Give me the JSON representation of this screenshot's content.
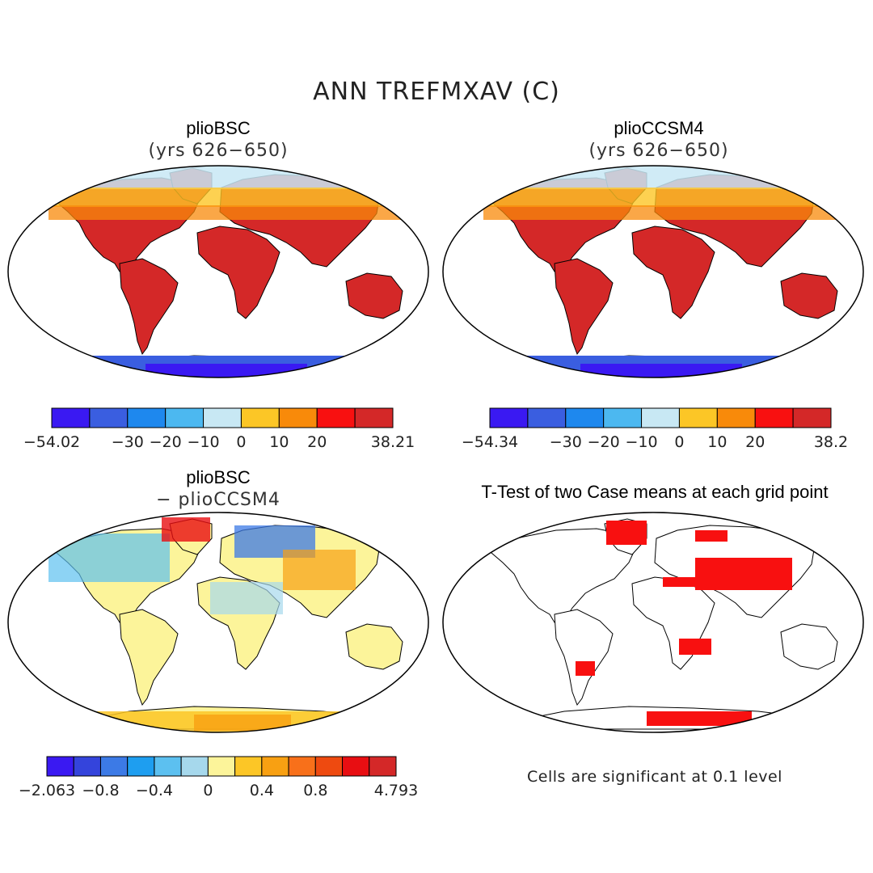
{
  "figure": {
    "title": "ANN TREFMXAV (C)"
  },
  "panels": [
    {
      "title": "plioBSC",
      "subtitle": "(yrs 626−650)",
      "colorbar": {
        "colors": [
          "#3a19f2",
          "#3a5ee0",
          "#1e88ee",
          "#4cb8f0",
          "#c8e8f4",
          "#fcc626",
          "#f88a0a",
          "#f81010",
          "#d42828"
        ],
        "tick_labels": [
          "−54.02",
          "−30",
          "−20",
          "−10",
          "0",
          "10",
          "20",
          "38.21"
        ]
      }
    },
    {
      "title": "plioCCSM4",
      "subtitle": "(yrs 626−650)",
      "colorbar": {
        "colors": [
          "#3a19f2",
          "#3a5ee0",
          "#1e88ee",
          "#4cb8f0",
          "#c8e8f4",
          "#fcc626",
          "#f88a0a",
          "#f81010",
          "#d42828"
        ],
        "tick_labels": [
          "−54.34",
          "−30",
          "−20",
          "−10",
          "0",
          "10",
          "20",
          "38.2"
        ]
      }
    },
    {
      "title": "plioBSC",
      "subtitle": "− plioCCSM4",
      "colorbar": {
        "colors": [
          "#3a19f2",
          "#3444dc",
          "#3c7ae6",
          "#1e9ef0",
          "#5cc0f0",
          "#a6d8ec",
          "#fcf49a",
          "#fcc626",
          "#f8a012",
          "#f8701a",
          "#ee4a10",
          "#e80e12",
          "#d42828"
        ],
        "tick_labels": [
          "−2.063",
          "−0.8",
          "−0.4",
          "0",
          "0.4",
          "0.8",
          "4.793"
        ]
      }
    },
    {
      "title": "T-Test of two Case means at each grid point",
      "note": "Cells are significant at 0.1 level"
    }
  ]
}
